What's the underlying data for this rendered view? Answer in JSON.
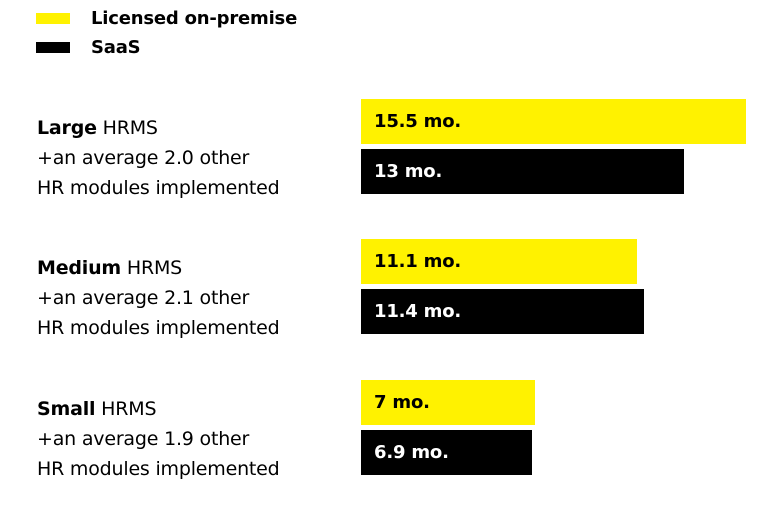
{
  "colors": {
    "on_premise": "#FFF200",
    "saas": "#000000",
    "on_premise_text": "#000000",
    "saas_text": "#FFFFFF"
  },
  "legend": [
    {
      "label": "Licensed on-premise",
      "color": "#FFF200"
    },
    {
      "label": "SaaS",
      "color": "#000000"
    }
  ],
  "groups": [
    {
      "size": "Large",
      "rest": " HRMS",
      "line2": "+an average 2.0 other",
      "line3": "HR modules implemented"
    },
    {
      "size": "Medium",
      "rest": " HRMS",
      "line2": "+an average 2.1 other",
      "line3": "HR modules implemented"
    },
    {
      "size": "Small",
      "rest": " HRMS",
      "line2": "+an average 1.9 other",
      "line3": "HR modules implemented"
    }
  ],
  "chart_data": {
    "type": "bar",
    "orientation": "horizontal",
    "categories": [
      "Large",
      "Medium",
      "Small"
    ],
    "series": [
      {
        "name": "Licensed on-premise",
        "values": [
          15.5,
          11.1,
          7
        ],
        "labels": [
          "15.5 mo.",
          "11.1 mo.",
          "7 mo."
        ]
      },
      {
        "name": "SaaS",
        "values": [
          13,
          11.4,
          6.9
        ],
        "labels": [
          "13 mo.",
          "11.4 mo.",
          "6.9 mo."
        ]
      }
    ],
    "xlim": [
      0,
      15.5
    ],
    "grid": false,
    "legend_position": "top-left"
  }
}
